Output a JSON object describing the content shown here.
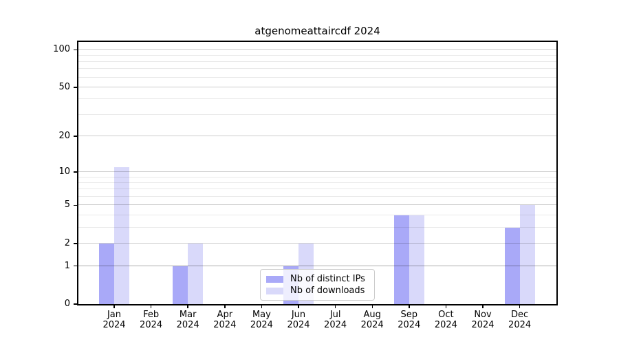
{
  "chart_data": {
    "type": "bar",
    "title": "atgenomeattaircdf 2024",
    "categories": [
      "Jan",
      "Feb",
      "Mar",
      "Apr",
      "May",
      "Jun",
      "Jul",
      "Aug",
      "Sep",
      "Oct",
      "Nov",
      "Dec"
    ],
    "x_year_label": "2024",
    "series": [
      {
        "name": "Nb of distinct IPs",
        "color": "#a9a9f8",
        "values": [
          2,
          0,
          1,
          0,
          0,
          1,
          0,
          0,
          4,
          0,
          0,
          3
        ]
      },
      {
        "name": "Nb of downloads",
        "color": "#d9d9fa",
        "values": [
          11,
          0,
          2,
          0,
          0,
          2,
          0,
          0,
          4,
          0,
          0,
          5
        ]
      }
    ],
    "y_axis": {
      "scale": "log1p",
      "ticks": [
        0,
        1,
        2,
        5,
        10,
        20,
        50,
        100
      ],
      "tick_labels": [
        "0",
        "1",
        "2",
        "5",
        "10",
        "20",
        "50",
        "100"
      ],
      "minor_ticks": [
        3,
        4,
        6,
        7,
        8,
        9,
        30,
        40,
        60,
        70,
        80,
        90
      ],
      "top_value": 115
    },
    "grid": true,
    "legend": {
      "position": "lower center",
      "entries": [
        "Nb of distinct IPs",
        "Nb of downloads"
      ]
    }
  }
}
